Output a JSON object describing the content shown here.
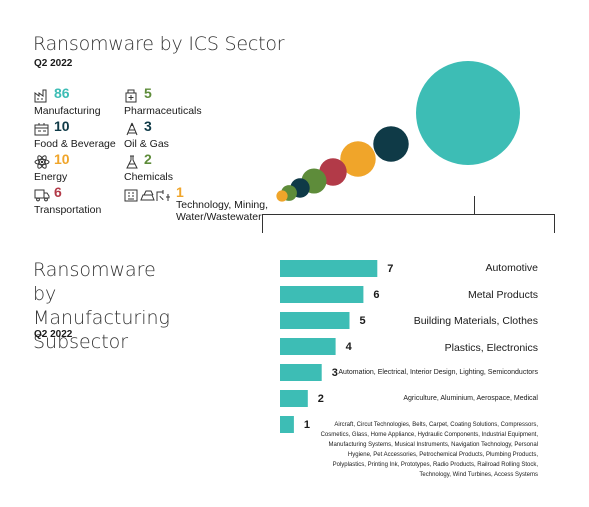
{
  "top": {
    "title": "Ransomware by ICS Sector",
    "subtitle": "Q2 2022"
  },
  "sectors": [
    {
      "count": "86",
      "label": "Manufacturing",
      "color": "#3dbdb5",
      "icon": "factory-icon"
    },
    {
      "count": "5",
      "label": "Pharmaceuticals",
      "color": "#5e8c3a",
      "icon": "pharmacy-icon"
    },
    {
      "count": "10",
      "label": "Food & Beverage",
      "color": "#0f3a47",
      "icon": "food-processing-icon"
    },
    {
      "count": "3",
      "label": "Oil & Gas",
      "color": "#0f3a47",
      "icon": "oil-derrick-icon"
    },
    {
      "count": "10",
      "label": "Energy",
      "color": "#f0a52a",
      "icon": "energy-atom-icon"
    },
    {
      "count": "2",
      "label": "Chemicals",
      "color": "#5e8c3a",
      "icon": "chemical-flask-icon"
    },
    {
      "count": "6",
      "label": "Transportation",
      "color": "#b23a48",
      "icon": "truck-icon"
    },
    {
      "count": "1",
      "label": "Technology, Mining, Water/Wastewater",
      "color": "#f0a52a",
      "icon": "tech-mining-water-icons"
    }
  ],
  "manufacturing": {
    "title": "Ransomware by Manufacturing Subsector",
    "subtitle": "Q2 2022"
  },
  "chart_data": [
    {
      "type": "scatter",
      "title": "Ransomware by ICS Sector",
      "categories": [
        "Manufacturing",
        "Food & Beverage",
        "Energy",
        "Transportation",
        "Pharmaceuticals",
        "Oil & Gas",
        "Chemicals",
        "Technology, Mining, Water/Wastewater"
      ],
      "values": [
        86,
        10,
        10,
        6,
        5,
        3,
        2,
        1
      ],
      "colors": [
        "#3dbdb5",
        "#0f3a47",
        "#f0a52a",
        "#b23a48",
        "#5e8c3a",
        "#0f3a47",
        "#5e8c3a",
        "#f0a52a"
      ]
    },
    {
      "type": "bar",
      "title": "Ransomware by Manufacturing Subsector",
      "bar_color": "#3dbdb5",
      "categories": [
        "Automotive",
        "Metal Products",
        "Building Materials, Clothes",
        "Plastics, Electronics",
        "Automation, Electrical, Interior Design, Lighting, Semiconductors",
        "Agriculture, Aluminium, Aerospace, Medical",
        "Aircraft, Circut Technologies, Belts, Carpet, Coating Solutions, Compressors, Cosmetics, Glass, Home Appliance, Hydraulic Components, Industrial Equipment, Manufacturing Systems, Musical Instruments, Navigation Technology, Personal Hygiene, Pet Accessories, Petrochemical Products, Plumbing Products, Polyplastics, Printing Ink, Prototypes, Radio Products, Railroad Rolling Stock, Technology, Wind Turbines, Access Systems"
      ],
      "values": [
        7,
        6,
        5,
        4,
        3,
        2,
        1
      ]
    }
  ]
}
